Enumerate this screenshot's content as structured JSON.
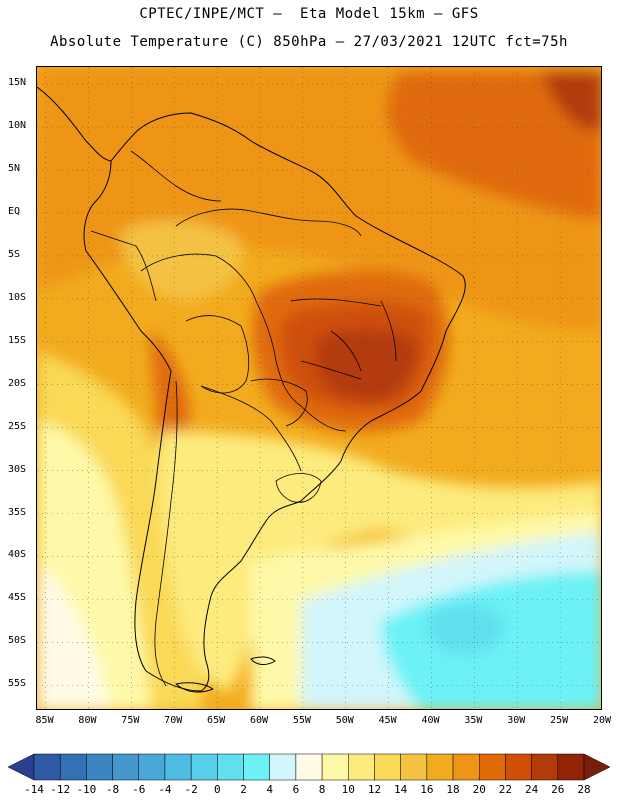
{
  "header": {
    "line1": "CPTEC/INPE/MCT –  Eta Model 15km – GFS",
    "line2": "Absolute Temperature (C) 850hPa – 27/03/2021 12UTC fct=75h"
  },
  "map": {
    "region": "South America",
    "lat_labels": [
      "15N",
      "10N",
      "5N",
      "EQ",
      "5S",
      "10S",
      "15S",
      "20S",
      "25S",
      "30S",
      "35S",
      "40S",
      "45S",
      "50S",
      "55S"
    ],
    "lon_labels": [
      "85W",
      "80W",
      "75W",
      "70W",
      "65W",
      "60W",
      "55W",
      "50W",
      "45W",
      "40W",
      "35W",
      "30W",
      "25W",
      "20W"
    ],
    "extent": {
      "lon_min": -86,
      "lon_max": -20,
      "lat_min": -58,
      "lat_max": 17
    },
    "fields": [
      {
        "name": "background",
        "value": 16
      },
      {
        "name": "tropical-belt",
        "value": 18
      },
      {
        "name": "amazon-west",
        "value": 14
      },
      {
        "name": "atlantic-warm-north",
        "value": 20
      },
      {
        "name": "atlantic-hot-north",
        "value": 24
      },
      {
        "name": "central-brazil-warm",
        "value": 20
      },
      {
        "name": "central-brazil-hot",
        "value": 22
      },
      {
        "name": "central-brazil-core",
        "value": 24
      },
      {
        "name": "andes-warm",
        "value": 20
      },
      {
        "name": "pacific-mild",
        "value": 12
      },
      {
        "name": "pacific-cool",
        "value": 8
      },
      {
        "name": "pacific-cold",
        "value": 6
      },
      {
        "name": "patagonia-mild",
        "value": 10
      },
      {
        "name": "south-atlantic-cool",
        "value": 8
      },
      {
        "name": "south-atlantic-cold",
        "value": 4
      },
      {
        "name": "south-atlantic-colder",
        "value": 2
      },
      {
        "name": "south-atlantic-coldest",
        "value": 0
      }
    ]
  },
  "colorbar": {
    "labels": [
      "-14",
      "-12",
      "-10",
      "-8",
      "-6",
      "-4",
      "-2",
      "0",
      "2",
      "4",
      "6",
      "8",
      "10",
      "12",
      "14",
      "16",
      "18",
      "20",
      "22",
      "24",
      "26",
      "28"
    ],
    "colors": [
      "#2a3f8f",
      "#2f5aa6",
      "#3271b4",
      "#3b86c2",
      "#4597cc",
      "#49a8d8",
      "#4fbde2",
      "#57cfe8",
      "#60e0ee",
      "#6cf2f6",
      "#d2f6fb",
      "#fffbe6",
      "#fef9a8",
      "#fdeb7e",
      "#f9d957",
      "#f4c242",
      "#f2ab1e",
      "#ee9515",
      "#e06a08",
      "#cf4f07",
      "#b33a09",
      "#922408",
      "#7a1e0c"
    ]
  }
}
